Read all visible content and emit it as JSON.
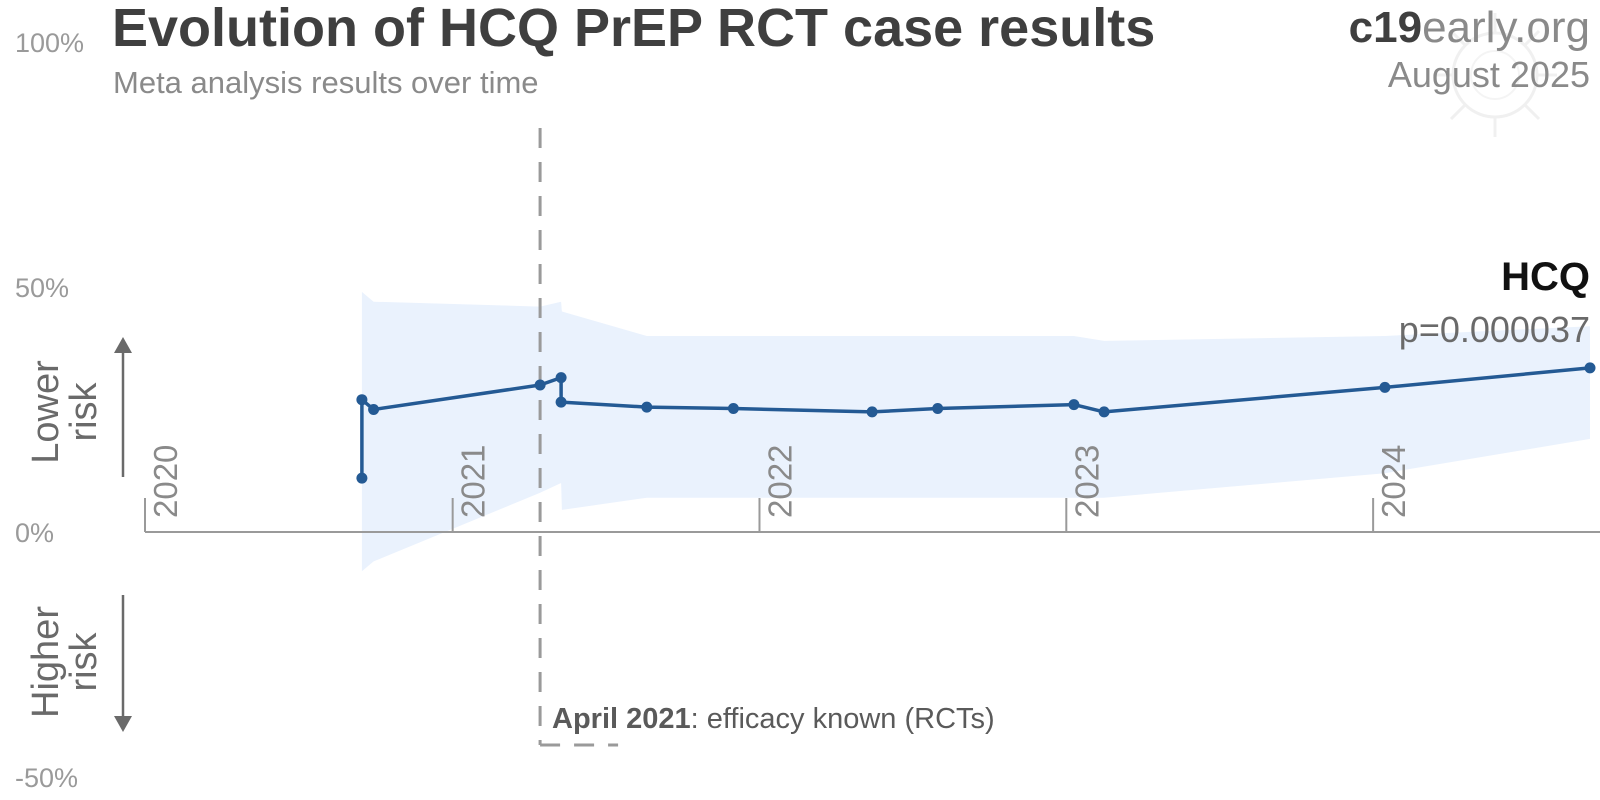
{
  "header": {
    "title": "Evolution of HCQ PrEP RCT case results",
    "subtitle": "Meta analysis results over time",
    "brand_bold": "c19",
    "brand_light": "early.org",
    "date": "August 2025"
  },
  "risk_labels": {
    "lower_line1": "Lower",
    "lower_line2": "risk",
    "higher_line1": "Higher",
    "higher_line2": "risk"
  },
  "annotation": {
    "bold": "April 2021",
    "text": ": efficacy known (RCTs)",
    "x": "2021-04-15"
  },
  "colors": {
    "line": "#245a94",
    "band": "#eaf2fd",
    "axis": "#9a9a9a",
    "vline": "#9a9a9a"
  },
  "chart_data": {
    "type": "line",
    "title": "Evolution of HCQ PrEP RCT case results",
    "subtitle": "Meta analysis results over time",
    "xlabel": "",
    "ylabel": "",
    "x_range": [
      "2020-01-01",
      "2024-09-15"
    ],
    "ylim": [
      -50,
      100
    ],
    "y_ticks": [
      {
        "value": 100,
        "label": "100%"
      },
      {
        "value": 50,
        "label": "50%"
      },
      {
        "value": 0,
        "label": "0%"
      },
      {
        "value": -50,
        "label": "-50%"
      }
    ],
    "x_ticks": [
      {
        "date": "2020-01-01",
        "label": "2020"
      },
      {
        "date": "2021-01-01",
        "label": "2021"
      },
      {
        "date": "2022-01-01",
        "label": "2022"
      },
      {
        "date": "2023-01-01",
        "label": "2023"
      },
      {
        "date": "2024-01-01",
        "label": "2024"
      }
    ],
    "series": [
      {
        "name": "HCQ",
        "p_value": "p=0.000037",
        "points": [
          {
            "x": "2020-09-15",
            "y": 11
          },
          {
            "x": "2020-09-15",
            "y": 27
          },
          {
            "x": "2020-09-29",
            "y": 25
          },
          {
            "x": "2021-04-15",
            "y": 30
          },
          {
            "x": "2021-05-10",
            "y": 31.5
          },
          {
            "x": "2021-05-10",
            "y": 26.5
          },
          {
            "x": "2021-08-20",
            "y": 25.5
          },
          {
            "x": "2021-12-01",
            "y": 25.2
          },
          {
            "x": "2022-05-15",
            "y": 24.5
          },
          {
            "x": "2022-08-01",
            "y": 25.2
          },
          {
            "x": "2023-01-10",
            "y": 26
          },
          {
            "x": "2023-02-15",
            "y": 24.5
          },
          {
            "x": "2024-01-15",
            "y": 29.5
          },
          {
            "x": "2024-09-15",
            "y": 33.5
          }
        ],
        "ci_band": [
          {
            "x": "2020-09-15",
            "upper": 49,
            "lower": -8
          },
          {
            "x": "2020-09-29",
            "upper": 47,
            "lower": -6
          },
          {
            "x": "2021-04-15",
            "upper": 46,
            "lower": 8
          },
          {
            "x": "2021-05-10",
            "upper": 47,
            "lower": 10
          },
          {
            "x": "2021-05-11",
            "upper": 45,
            "lower": 4.5
          },
          {
            "x": "2021-08-20",
            "upper": 40,
            "lower": 7
          },
          {
            "x": "2022-06-01",
            "upper": 40,
            "lower": 7
          },
          {
            "x": "2023-01-10",
            "upper": 40,
            "lower": 7
          },
          {
            "x": "2023-02-15",
            "upper": 39,
            "lower": 7
          },
          {
            "x": "2024-01-15",
            "upper": 40,
            "lower": 12
          },
          {
            "x": "2024-09-15",
            "upper": 42,
            "lower": 19
          }
        ]
      }
    ],
    "grid": false,
    "legend": "none"
  }
}
